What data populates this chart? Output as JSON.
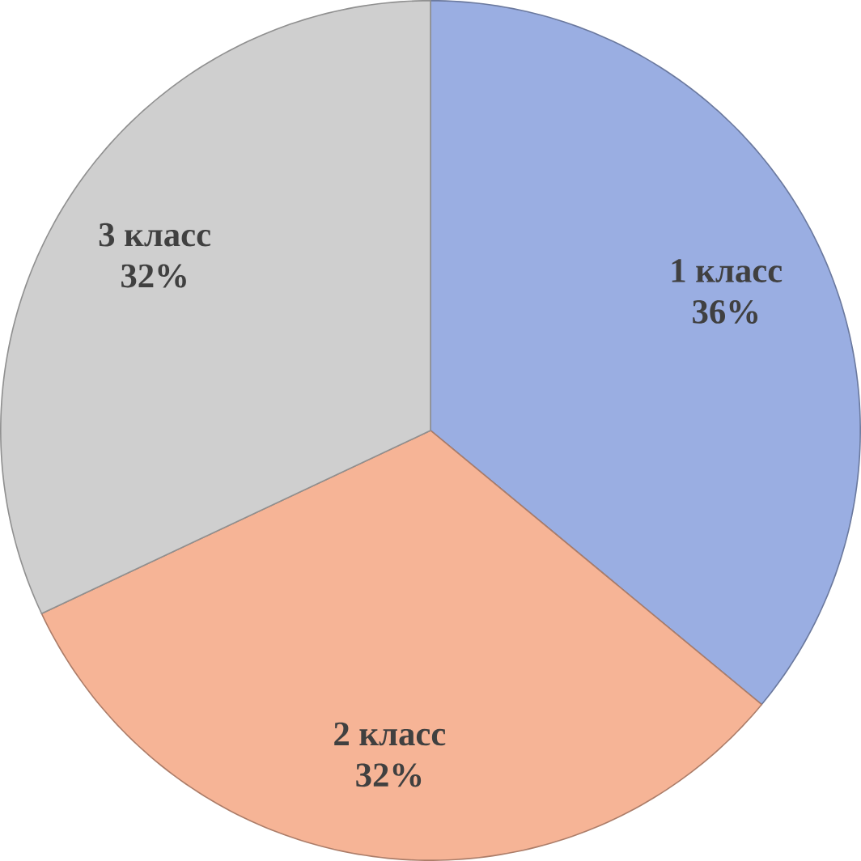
{
  "chart_data": {
    "type": "pie",
    "categories": [
      "1 класс",
      "2 класс",
      "3 класс"
    ],
    "values": [
      36,
      32,
      32
    ],
    "value_labels": [
      "36%",
      "32%",
      "32%"
    ],
    "colors": [
      "#9aaee2",
      "#f6b496",
      "#cfcfcf"
    ]
  }
}
